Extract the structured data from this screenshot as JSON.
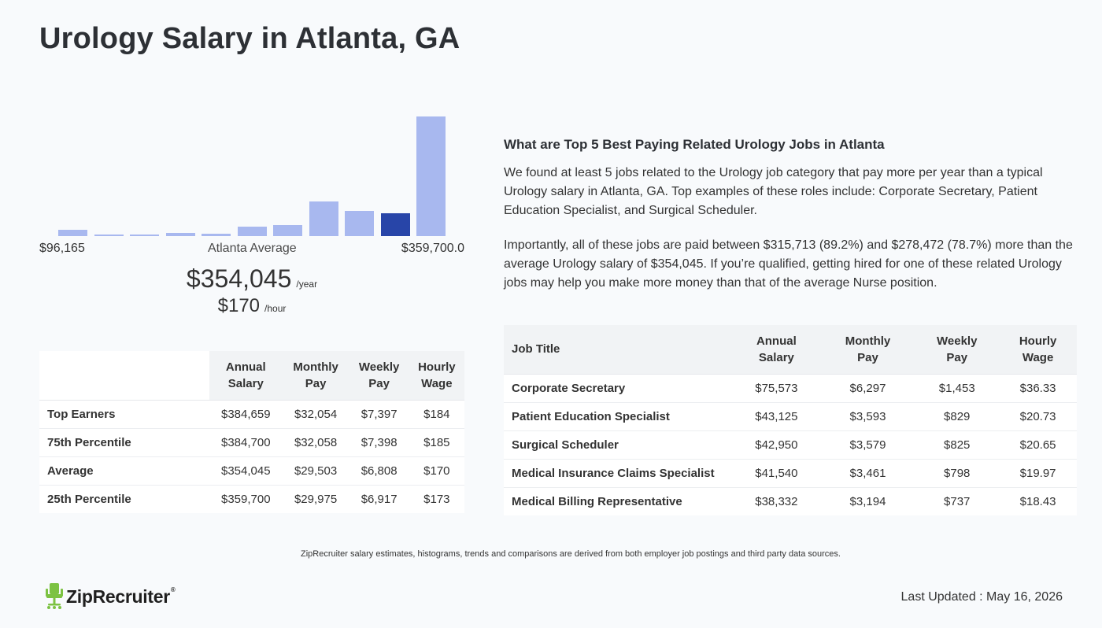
{
  "title": "Urology Salary in Atlanta, GA",
  "histogram": {
    "bar_heights_relative": [
      0.05,
      0.015,
      0.015,
      0.025,
      0.02,
      0.08,
      0.09,
      0.29,
      0.21,
      0.19,
      1.0
    ],
    "highlight_index": 9,
    "bar_color": "#a8b8ef",
    "highlight_color": "#2845a8",
    "min_label": "$96,165",
    "mid_label": "Atlanta Average",
    "max_label": "$359,700.0"
  },
  "average": {
    "year_value": "$354,045",
    "year_unit": "/year",
    "hour_value": "$170",
    "hour_unit": "/hour"
  },
  "percentile_table": {
    "headers": [
      [
        "Annual",
        "Salary"
      ],
      [
        "Monthly",
        "Pay"
      ],
      [
        "Weekly",
        "Pay"
      ],
      [
        "Hourly",
        "Wage"
      ]
    ],
    "rows": [
      {
        "label": "Top Earners",
        "values": [
          "$384,659",
          "$32,054",
          "$7,397",
          "$184"
        ]
      },
      {
        "label": "75th Percentile",
        "values": [
          "$384,700",
          "$32,058",
          "$7,398",
          "$185"
        ]
      },
      {
        "label": "Average",
        "values": [
          "$354,045",
          "$29,503",
          "$6,808",
          "$170"
        ]
      },
      {
        "label": "25th Percentile",
        "values": [
          "$359,700",
          "$29,975",
          "$6,917",
          "$173"
        ]
      }
    ]
  },
  "related": {
    "heading": "What are Top 5 Best Paying Related Urology Jobs in Atlanta",
    "paragraph1": "We found at least 5 jobs related to the Urology job category that pay more per year than a typical Urology salary in Atlanta, GA. Top examples of these roles include: Corporate Secretary, Patient Education Specialist, and Surgical Scheduler.",
    "paragraph2": "Importantly, all of these jobs are paid between $315,713 (89.2%) and $278,472 (78.7%) more than the average Urology salary of $354,045. If you’re qualified, getting hired for one of these related Urology jobs may help you make more money than that of the average Nurse position."
  },
  "jobs_table": {
    "job_header": "Job Title",
    "headers": [
      [
        "Annual",
        "Salary"
      ],
      [
        "Monthly",
        "Pay"
      ],
      [
        "Weekly",
        "Pay"
      ],
      [
        "Hourly",
        "Wage"
      ]
    ],
    "rows": [
      {
        "title": "Corporate Secretary",
        "values": [
          "$75,573",
          "$6,297",
          "$1,453",
          "$36.33"
        ]
      },
      {
        "title": "Patient Education Specialist",
        "values": [
          "$43,125",
          "$3,593",
          "$829",
          "$20.73"
        ]
      },
      {
        "title": "Surgical Scheduler",
        "values": [
          "$42,950",
          "$3,579",
          "$825",
          "$20.65"
        ]
      },
      {
        "title": "Medical Insurance Claims Specialist",
        "values": [
          "$41,540",
          "$3,461",
          "$798",
          "$19.97"
        ]
      },
      {
        "title": "Medical Billing Representative",
        "values": [
          "$38,332",
          "$3,194",
          "$737",
          "$18.43"
        ]
      }
    ]
  },
  "footer": {
    "disclaimer": "ZipRecruiter salary estimates, histograms, trends and comparisons are derived from both employer job postings and third party data sources.",
    "logo_text": "ZipRecruiter",
    "logo_mark": "®",
    "logo_icon": "chair-icon",
    "logo_color": "#7cc242",
    "updated": "Last Updated : May 16, 2026"
  }
}
